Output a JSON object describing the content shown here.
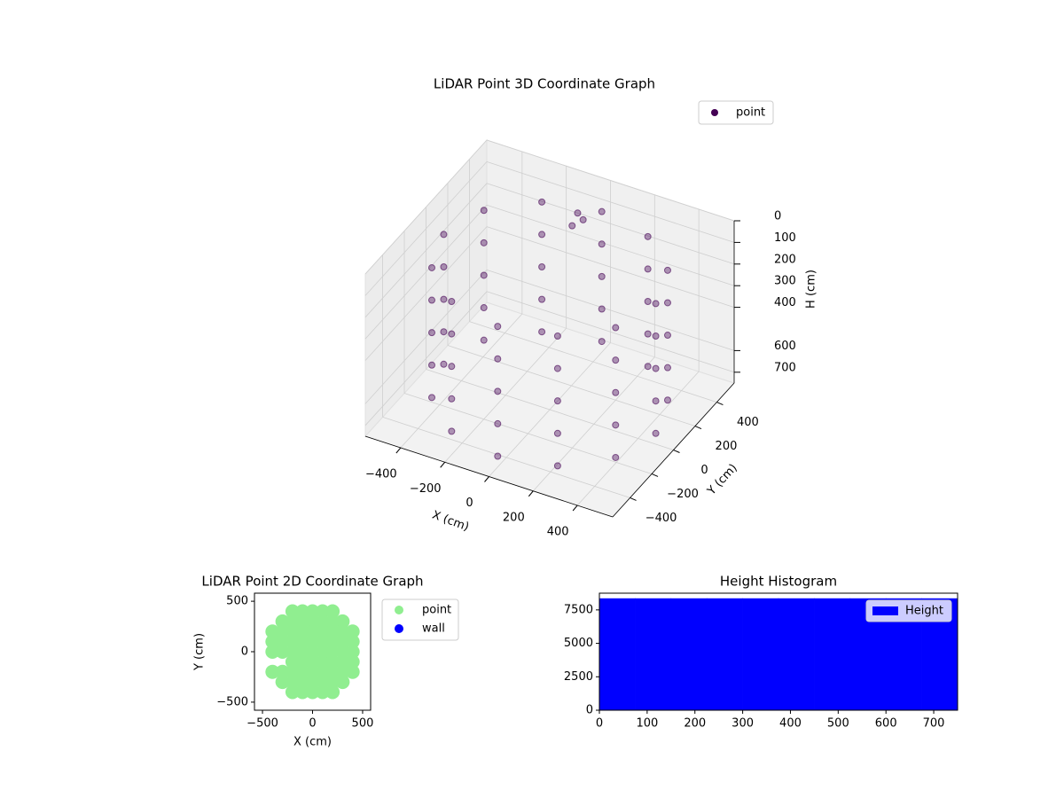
{
  "chart_data": [
    {
      "type": "scatter3d",
      "title": "LiDAR Point 3D Coordinate Graph",
      "xlabel": "X (cm)",
      "ylabel": "Y (cm)",
      "zlabel": "H (cm)",
      "xlim": [
        -560,
        560
      ],
      "ylim": [
        -560,
        560
      ],
      "zlim": [
        0,
        750
      ],
      "xticks": [
        {
          "value": -400,
          "label": "−400"
        },
        {
          "value": -200,
          "label": "−200"
        },
        0,
        200,
        400
      ],
      "yticks": [
        {
          "value": -400,
          "label": "−400"
        },
        {
          "value": -200,
          "label": "−200"
        },
        0,
        200,
        400
      ],
      "zticks": [
        0,
        100,
        200,
        300,
        400,
        600,
        700
      ],
      "grid": true,
      "legend": "upper right",
      "series": [
        {
          "name": "point",
          "color": "#440154",
          "x": [
            480,
            416,
            240,
            0,
            -240,
            -416,
            -480,
            -416,
            -240,
            0,
            240,
            416,
            480,
            416,
            240,
            0,
            -240,
            -416,
            -480,
            -416,
            -240,
            0,
            240,
            416,
            480,
            416,
            240,
            0,
            -240,
            -416,
            -480,
            -416,
            -240,
            0,
            240,
            416,
            480,
            416,
            240,
            0,
            -240,
            -416,
            -480,
            -416,
            -240,
            0,
            240,
            416,
            480,
            416,
            240,
            0,
            -240,
            -416,
            -480,
            -416,
            -240,
            0,
            240,
            416,
            -80,
            -60,
            -100
          ],
          "y": [
            0,
            240,
            416,
            480,
            416,
            240,
            0,
            -240,
            -416,
            -480,
            -416,
            -240,
            0,
            240,
            416,
            480,
            416,
            240,
            0,
            -240,
            -416,
            -480,
            -416,
            -240,
            0,
            240,
            416,
            480,
            416,
            240,
            0,
            -240,
            -416,
            -480,
            -416,
            -240,
            0,
            240,
            416,
            480,
            416,
            240,
            0,
            -240,
            -416,
            -480,
            -416,
            -240,
            0,
            240,
            416,
            480,
            416,
            240,
            0,
            -240,
            -416,
            -480,
            -416,
            -240,
            420,
            430,
            410
          ],
          "z": [
            100,
            100,
            100,
            100,
            100,
            100,
            100,
            100,
            100,
            100,
            100,
            100,
            250,
            250,
            250,
            250,
            250,
            250,
            250,
            250,
            250,
            250,
            250,
            250,
            400,
            400,
            400,
            400,
            400,
            400,
            400,
            400,
            400,
            400,
            400,
            400,
            550,
            550,
            550,
            550,
            550,
            550,
            550,
            550,
            550,
            550,
            550,
            550,
            700,
            700,
            700,
            700,
            700,
            700,
            700,
            700,
            700,
            700,
            700,
            700,
            100,
            130,
            160
          ]
        }
      ]
    },
    {
      "type": "scatter",
      "title": "LiDAR Point 2D Coordinate Graph",
      "xlabel": "X (cm)",
      "ylabel": "Y (cm)",
      "xlim": [
        -580,
        580
      ],
      "ylim": [
        -580,
        580
      ],
      "xticks": [
        {
          "value": -500,
          "label": "−500"
        },
        0,
        500
      ],
      "yticks": [
        {
          "value": -500,
          "label": "−500"
        },
        0,
        500
      ],
      "grid": false,
      "legend": "outside upper right",
      "series": [
        {
          "name": "point",
          "color": "#90ee90",
          "x": [
            -200,
            -100,
            0,
            100,
            200,
            -300,
            -200,
            -100,
            0,
            100,
            200,
            300,
            -400,
            -300,
            -200,
            -100,
            0,
            100,
            200,
            300,
            400,
            -400,
            -300,
            -200,
            -100,
            0,
            100,
            200,
            300,
            400,
            -400,
            -300,
            -200,
            -100,
            0,
            100,
            200,
            300,
            400,
            -200,
            -100,
            0,
            100,
            200,
            300,
            400,
            -400,
            -300,
            -200,
            -100,
            0,
            100,
            200,
            300,
            400,
            -300,
            -200,
            -100,
            0,
            100,
            200,
            300,
            -200,
            -100,
            0,
            100,
            200
          ],
          "y": [
            400,
            400,
            400,
            400,
            400,
            300,
            300,
            300,
            300,
            300,
            300,
            300,
            200,
            200,
            200,
            200,
            200,
            200,
            200,
            200,
            200,
            100,
            100,
            100,
            100,
            100,
            100,
            100,
            100,
            100,
            0,
            0,
            0,
            0,
            0,
            0,
            0,
            0,
            0,
            -100,
            -100,
            -100,
            -100,
            -100,
            -100,
            -100,
            -200,
            -200,
            -200,
            -200,
            -200,
            -200,
            -200,
            -200,
            -200,
            -300,
            -300,
            -300,
            -300,
            -300,
            -300,
            -300,
            -400,
            -400,
            -400,
            -400,
            -400
          ]
        },
        {
          "name": "wall",
          "color": "#0000ff",
          "x": [],
          "y": []
        }
      ]
    },
    {
      "type": "histogram",
      "title": "Height Histogram",
      "xlim": [
        0,
        750
      ],
      "ylim": [
        0,
        8750
      ],
      "xticks": [
        0,
        100,
        200,
        300,
        400,
        500,
        600,
        700
      ],
      "yticks": [
        0,
        2500,
        5000,
        7500
      ],
      "grid": false,
      "legend": "upper right",
      "bins": [
        0,
        75,
        150,
        225,
        300,
        375,
        450,
        525,
        600,
        675,
        750
      ],
      "series": [
        {
          "name": "Height",
          "color": "#0000ff",
          "values": [
            8350,
            8350,
            8350,
            8350,
            8350,
            8350,
            8350,
            8350,
            8350,
            8350
          ]
        }
      ]
    }
  ]
}
